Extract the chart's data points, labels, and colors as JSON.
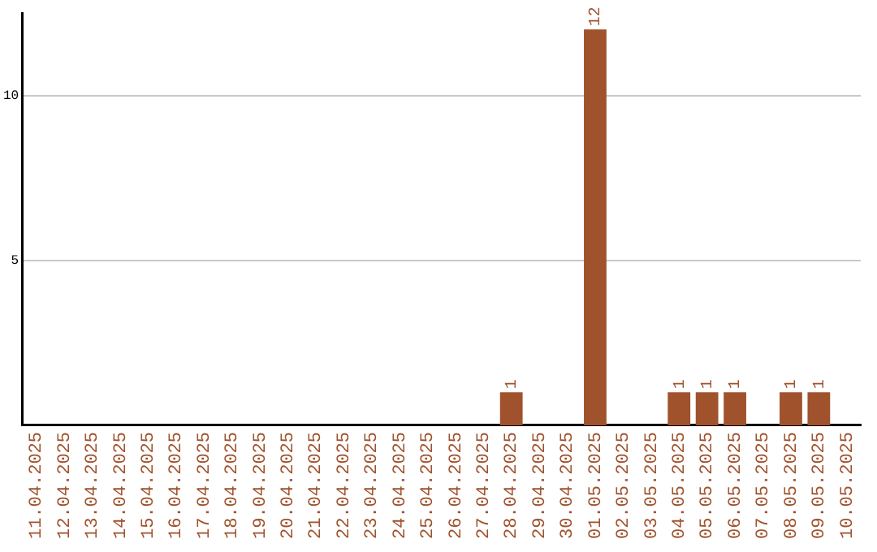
{
  "chart_data": {
    "type": "bar",
    "categories": [
      "11.04.2025",
      "12.04.2025",
      "13.04.2025",
      "14.04.2025",
      "15.04.2025",
      "16.04.2025",
      "17.04.2025",
      "18.04.2025",
      "19.04.2025",
      "20.04.2025",
      "21.04.2025",
      "22.04.2025",
      "23.04.2025",
      "24.04.2025",
      "25.04.2025",
      "26.04.2025",
      "27.04.2025",
      "28.04.2025",
      "29.04.2025",
      "30.04.2025",
      "01.05.2025",
      "02.05.2025",
      "03.05.2025",
      "04.05.2025",
      "05.05.2025",
      "06.05.2025",
      "07.05.2025",
      "08.05.2025",
      "09.05.2025",
      "10.05.2025"
    ],
    "values": [
      0,
      0,
      0,
      0,
      0,
      0,
      0,
      0,
      0,
      0,
      0,
      0,
      0,
      0,
      0,
      0,
      0,
      1,
      0,
      0,
      12,
      0,
      0,
      1,
      1,
      1,
      0,
      1,
      1,
      0
    ],
    "value_labels": [
      null,
      null,
      null,
      null,
      null,
      null,
      null,
      null,
      null,
      null,
      null,
      null,
      null,
      null,
      null,
      null,
      null,
      "1",
      null,
      null,
      "12",
      null,
      null,
      "1",
      "1",
      "1",
      null,
      "1",
      "1",
      null
    ],
    "color": "#a0522d",
    "ylim": [
      0,
      12.5
    ],
    "yticks": [
      5,
      10
    ],
    "grid": "y",
    "legend": false
  }
}
